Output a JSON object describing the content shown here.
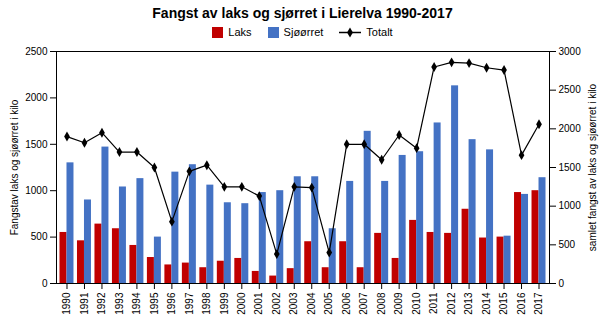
{
  "chart_data": {
    "type": "bar",
    "title": "Fangst av laks og sjørret i Lierelva 1990-2017",
    "categories": [
      "1990",
      "1991",
      "1992",
      "1993",
      "1994",
      "1995",
      "1996",
      "1997",
      "1998",
      "1999",
      "2000",
      "2001",
      "2002",
      "2003",
      "2004",
      "2005",
      "2006",
      "2007",
      "2008",
      "2009",
      "2010",
      "2011",
      "2012",
      "2013",
      "2014",
      "2015",
      "2016",
      "2017"
    ],
    "series": [
      {
        "name": "Laks",
        "color": "#c00000",
        "values": [
          550,
          460,
          640,
          590,
          410,
          280,
          200,
          220,
          170,
          240,
          270,
          130,
          80,
          160,
          450,
          170,
          450,
          170,
          540,
          270,
          680,
          550,
          540,
          800,
          490,
          500,
          980,
          1000
        ]
      },
      {
        "name": "Sjøørret",
        "color": "#4472c4",
        "values": [
          1300,
          900,
          1470,
          1040,
          1130,
          500,
          1200,
          1280,
          1060,
          870,
          860,
          980,
          1000,
          1150,
          1150,
          590,
          1100,
          1640,
          1100,
          1380,
          1420,
          1730,
          2130,
          1550,
          1440,
          510,
          960,
          1140
        ]
      },
      {
        "name": "Totalt",
        "color": "black",
        "type": "line",
        "marker": "diamond",
        "axis": "y2",
        "values": [
          1900,
          1820,
          1950,
          1700,
          1700,
          1500,
          800,
          1450,
          1530,
          1250,
          1250,
          1130,
          380,
          1250,
          1240,
          400,
          1800,
          1800,
          1600,
          1920,
          1750,
          2800,
          2860,
          2850,
          2790,
          2760,
          1660,
          2060
        ]
      }
    ],
    "ylabel": "Fangstav laks og sjøørret i kilo",
    "y2label": "samlet fangst av laks og sjøørret i kilo",
    "ylim": [
      0,
      2500
    ],
    "yticks": [
      0,
      500,
      1000,
      1500,
      2000,
      2500
    ],
    "y2lim": [
      0,
      3000
    ],
    "y2ticks": [
      0,
      500,
      1000,
      1500,
      2000,
      2500,
      3000
    ],
    "grid": false,
    "legend": "top"
  }
}
